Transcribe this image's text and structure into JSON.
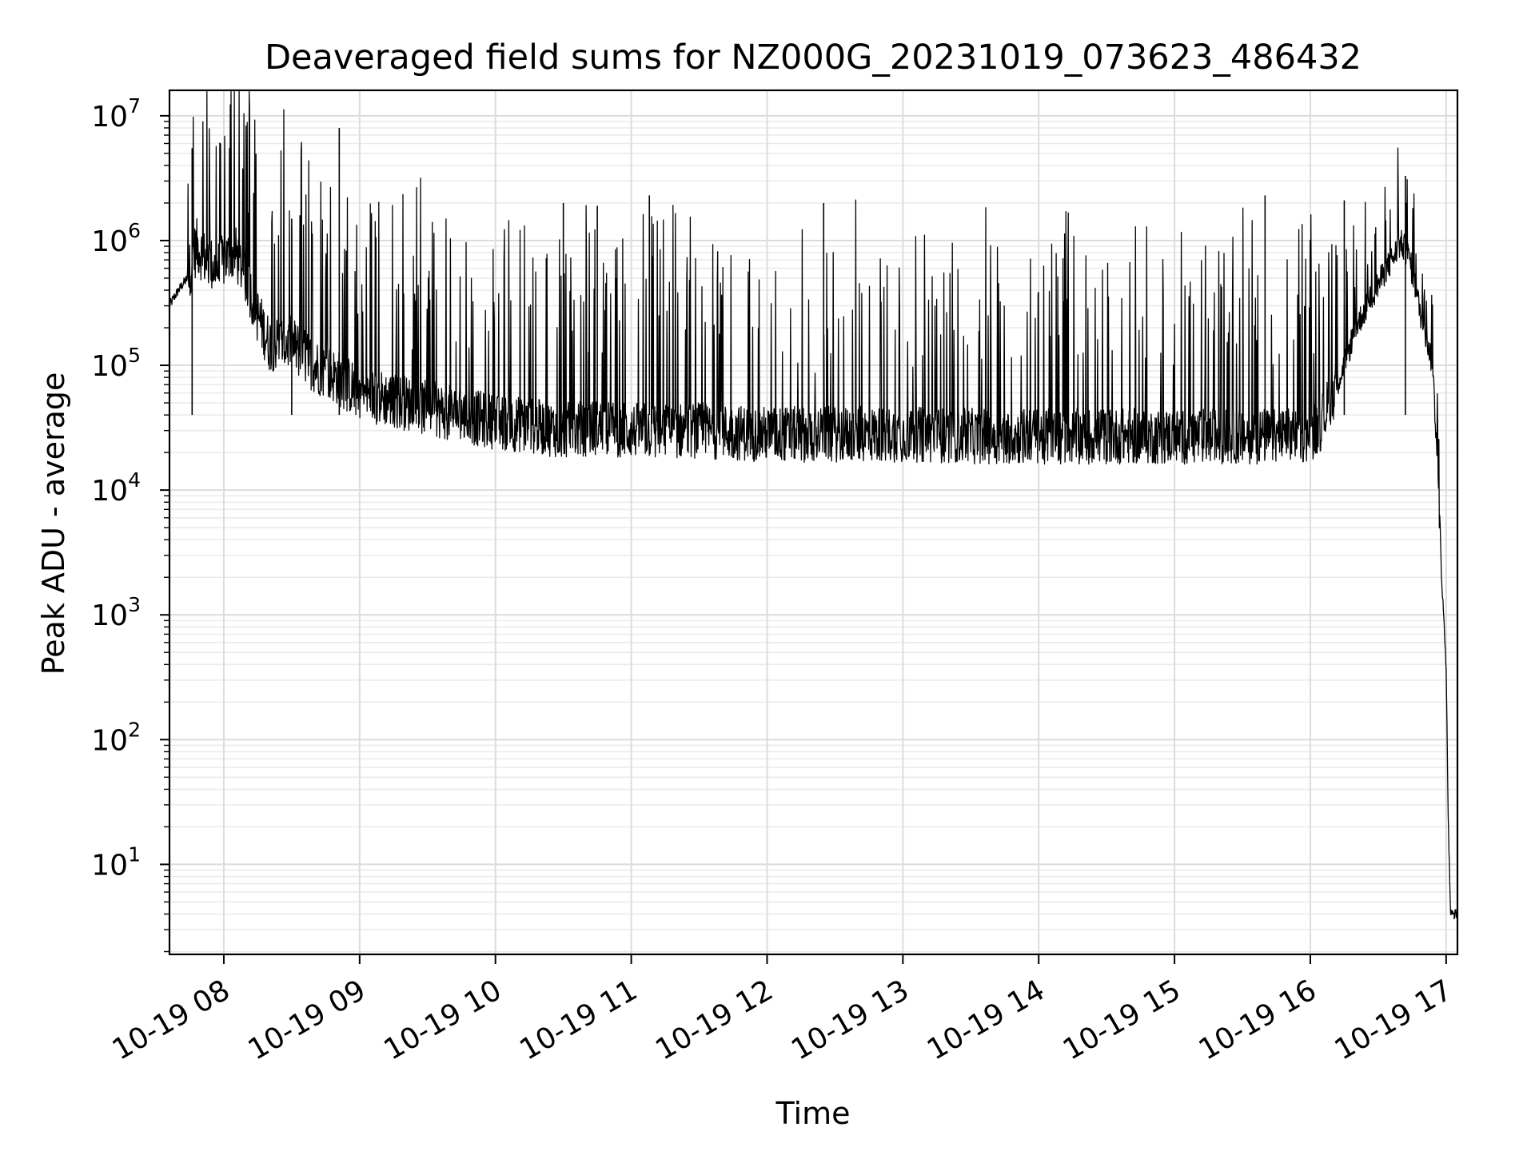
{
  "chart_data": {
    "type": "line",
    "title": "Deaveraged field sums for NZ000G_20231019_073623_486432",
    "xlabel": "Time",
    "ylabel": "Peak ADU - average",
    "yscale": "log",
    "ylim": [
      1.9,
      16000000
    ],
    "xlim": [
      "10-19 07:36",
      "10-19 17:05"
    ],
    "grid": true,
    "line_color": "#000000",
    "x_tick_labels": [
      "10-19 08",
      "10-19 09",
      "10-19 10",
      "10-19 11",
      "10-19 12",
      "10-19 13",
      "10-19 14",
      "10-19 15",
      "10-19 16",
      "10-19 17"
    ],
    "y_tick_labels": [
      {
        "base": "10",
        "exp": "1",
        "value": 10
      },
      {
        "base": "10",
        "exp": "2",
        "value": 100
      },
      {
        "base": "10",
        "exp": "3",
        "value": 1000
      },
      {
        "base": "10",
        "exp": "4",
        "value": 10000
      },
      {
        "base": "10",
        "exp": "5",
        "value": 100000
      },
      {
        "base": "10",
        "exp": "6",
        "value": 1000000
      },
      {
        "base": "10",
        "exp": "7",
        "value": 10000000
      }
    ],
    "series": [
      {
        "x": [
          "07:36",
          "07:38",
          "07:40",
          "07:42",
          "07:44",
          "07:46",
          "07:48",
          "07:50",
          "07:52",
          "07:54",
          "07:56",
          "07:58",
          "08:00",
          "08:05",
          "08:10",
          "08:15",
          "08:20",
          "08:25",
          "08:30",
          "08:35",
          "08:40",
          "08:45",
          "08:50",
          "08:55",
          "09:00",
          "09:10",
          "09:20",
          "09:30",
          "09:45",
          "10:00",
          "10:15",
          "10:30",
          "10:45",
          "11:00",
          "11:30",
          "12:00",
          "12:30",
          "13:00",
          "13:30",
          "14:00",
          "14:30",
          "15:00",
          "15:30",
          "15:50",
          "16:00",
          "16:05",
          "16:10",
          "16:15",
          "16:20",
          "16:25",
          "16:30",
          "16:35",
          "16:40",
          "16:42",
          "16:44",
          "16:46",
          "16:48",
          "16:50",
          "16:52",
          "16:54",
          "16:56",
          "16:58",
          "17:00",
          "17:01",
          "17:02",
          "17:03",
          "17:04",
          "17:05"
        ],
        "y": [
          300000,
          350000,
          400000,
          450000,
          500000,
          700000,
          900000,
          800000,
          700000,
          650000,
          600000,
          600000,
          700000,
          800000,
          500000,
          250000,
          150000,
          150000,
          150000,
          120000,
          100000,
          90000,
          80000,
          70000,
          60000,
          55000,
          50000,
          45000,
          40000,
          35000,
          33000,
          30000,
          32000,
          30000,
          30000,
          28000,
          28000,
          28000,
          27000,
          27000,
          27000,
          27000,
          27000,
          27000,
          28000,
          35000,
          60000,
          100000,
          200000,
          300000,
          450000,
          650000,
          950000,
          850000,
          700000,
          450000,
          300000,
          200000,
          150000,
          100000,
          20000,
          2000,
          400,
          20,
          4,
          4,
          4,
          4
        ]
      }
    ],
    "spikes": {
      "x": [
        "07:46",
        "08:30",
        "08:51",
        "10:30",
        "10:45",
        "11:08",
        "12:25",
        "15:40",
        "16:15",
        "16:42"
      ],
      "y": [
        5500000,
        1500000,
        8000000,
        2000000,
        1900000,
        2300000,
        2000000,
        2300000,
        2100000,
        3300000
      ]
    }
  }
}
